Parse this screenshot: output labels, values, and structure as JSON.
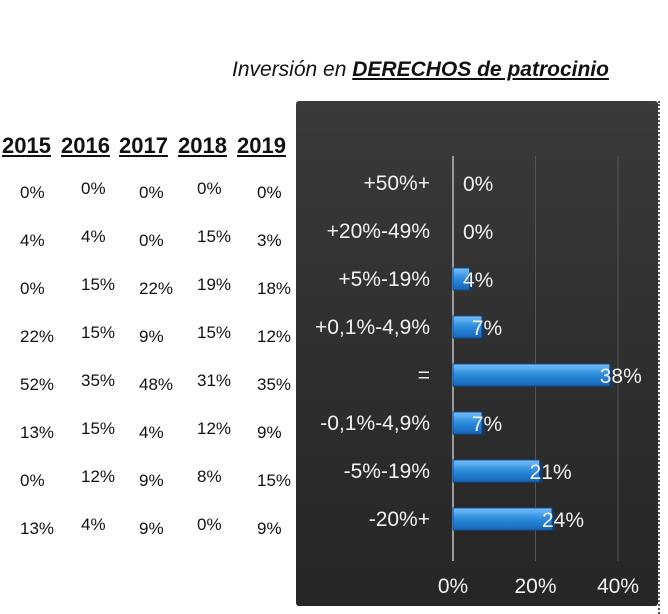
{
  "title_prefix": "Inversión en ",
  "title_emphasis": "DERECHOS de patrocinio",
  "table": {
    "years": [
      "2015",
      "2016",
      "2017",
      "2018",
      "2019"
    ],
    "rows": [
      [
        "0%",
        "0%",
        "0%",
        "0%",
        "0%"
      ],
      [
        "4%",
        "4%",
        "0%",
        "15%",
        "3%"
      ],
      [
        "0%",
        "15%",
        "22%",
        "19%",
        "18%"
      ],
      [
        "22%",
        "15%",
        "9%",
        "15%",
        "12%"
      ],
      [
        "52%",
        "35%",
        "48%",
        "31%",
        "35%"
      ],
      [
        "13%",
        "15%",
        "4%",
        "12%",
        "9%"
      ],
      [
        "0%",
        "12%",
        "9%",
        "8%",
        "15%"
      ],
      [
        "13%",
        "4%",
        "9%",
        "0%",
        "9%"
      ]
    ]
  },
  "chart_data": {
    "type": "bar",
    "orientation": "horizontal",
    "categories": [
      "+50%+",
      "+20%-49%",
      "+5%-19%",
      "+0,1%-4,9%",
      "=",
      "-0,1%-4,9%",
      "-5%-19%",
      "-20%+"
    ],
    "values": [
      0,
      0,
      4,
      7,
      38,
      7,
      21,
      24
    ],
    "value_labels": [
      "0%",
      "0%",
      "4%",
      "7%",
      "38%",
      "7%",
      "21%",
      "24%"
    ],
    "xlim": [
      0,
      40
    ],
    "xticks": [
      "0%",
      "20%",
      "40%"
    ],
    "xtick_values": [
      0,
      20,
      40
    ],
    "grid": true,
    "bar_color": "#2f8fe0",
    "background": "#2e2e2e"
  }
}
